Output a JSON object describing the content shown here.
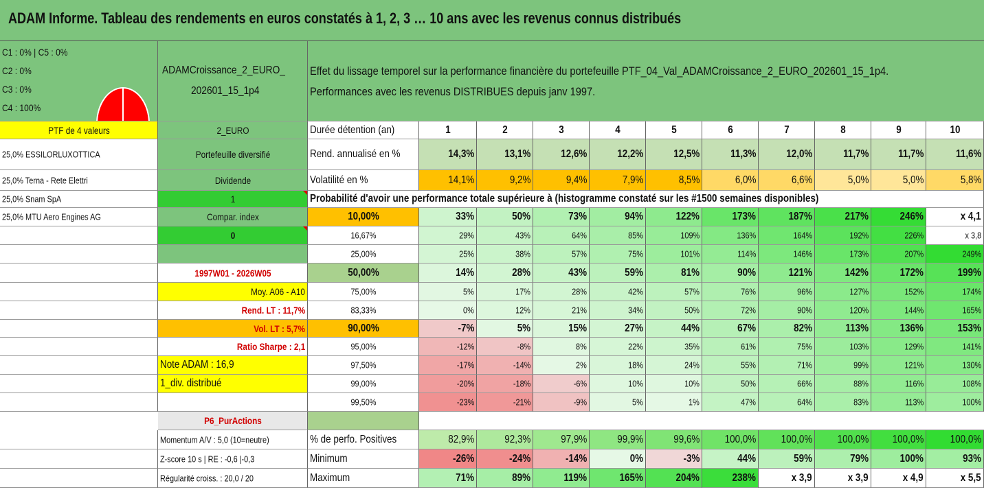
{
  "title": "ADAM Informe. Tableau des rendements en euros constatés à 1, 2, 3 … 10 ans avec les revenus connus distribués",
  "colors": {
    "bg_green": "#7dc47d",
    "header_row": "#a9d18e",
    "yellow": "#ffff00",
    "orange": "#ffc000",
    "bright_green": "#33cc33",
    "pie_red": "#ff0000"
  },
  "classes": [
    "C1 : 0% | C5 : 0%",
    "C2 : 0%",
    "C3 : 0%",
    "C4 : 100%"
  ],
  "portfolio_name_line1": "ADAMCroissance_2_EURO_",
  "portfolio_name_line2": "202601_15_1p4",
  "description_line1": "Effet du lissage temporel sur la performance financière du portefeuille PTF_04_Val_ADAMCroissance_2_EURO_202601_15_1p4.",
  "description_line2": "Performances avec les revenus DISTRIBUES depuis janv 1997.",
  "ptf_label": "PTF de 4 valeurs",
  "currency": "2_EURO",
  "duration_label": "Durée détention (an)",
  "years": [
    "1",
    "2",
    "3",
    "4",
    "5",
    "6",
    "7",
    "8",
    "9",
    "10"
  ],
  "holdings": [
    "25,0% ESSILORLUXOTTICA",
    "25,0% Terna - Rete Elettri",
    "25,0% Snam SpA",
    "25,0% MTU Aero Engines AG"
  ],
  "side": {
    "diversified": "Portefeuille diversifié",
    "dividend": "Dividende",
    "one": "1",
    "compar_index": "Compar. index",
    "zero": "0",
    "period": "1997W01 - 2026W05",
    "moy": "Moy. A06 - A10",
    "rend_lt": "Rend. LT : 11,7%",
    "vol_lt": "Vol. LT : 5,7%",
    "sharpe": "Ratio Sharpe : 2,1",
    "note": "Note ADAM : 16,9",
    "div": "1_div. distribué",
    "p6": "P6_PurActions"
  },
  "rend_label": "Rend. annualisé en %",
  "rend": [
    "14,3%",
    "13,1%",
    "12,6%",
    "12,2%",
    "12,5%",
    "11,3%",
    "12,0%",
    "11,7%",
    "11,7%",
    "11,6%"
  ],
  "vol_label": "Volatilité en %",
  "vol": [
    "14,1%",
    "9,2%",
    "9,4%",
    "7,9%",
    "8,5%",
    "6,0%",
    "6,6%",
    "5,0%",
    "5,0%",
    "5,8%"
  ],
  "proba_label": "Probabilité d'avoir une performance totale supérieure à (histogramme constaté sur les #1500 semaines disponibles)",
  "quantiles": [
    {
      "q": "10,00%",
      "v": [
        "33%",
        "50%",
        "73%",
        "94%",
        "122%",
        "173%",
        "187%",
        "217%",
        "246%",
        "x 4,1"
      ]
    },
    {
      "q": "16,67%",
      "v": [
        "29%",
        "43%",
        "64%",
        "85%",
        "109%",
        "136%",
        "164%",
        "192%",
        "226%",
        "x 3,8"
      ]
    },
    {
      "q": "25,00%",
      "v": [
        "25%",
        "38%",
        "57%",
        "75%",
        "101%",
        "114%",
        "146%",
        "173%",
        "207%",
        "249%"
      ]
    },
    {
      "q": "50,00%",
      "v": [
        "14%",
        "28%",
        "43%",
        "59%",
        "81%",
        "90%",
        "121%",
        "142%",
        "172%",
        "199%"
      ]
    },
    {
      "q": "75,00%",
      "v": [
        "5%",
        "17%",
        "28%",
        "42%",
        "57%",
        "76%",
        "96%",
        "127%",
        "152%",
        "174%"
      ]
    },
    {
      "q": "83,33%",
      "v": [
        "0%",
        "12%",
        "21%",
        "34%",
        "50%",
        "72%",
        "90%",
        "120%",
        "144%",
        "165%"
      ]
    },
    {
      "q": "90,00%",
      "v": [
        "-7%",
        "5%",
        "15%",
        "27%",
        "44%",
        "67%",
        "82%",
        "113%",
        "136%",
        "153%"
      ]
    },
    {
      "q": "95,00%",
      "v": [
        "-12%",
        "-8%",
        "8%",
        "22%",
        "35%",
        "61%",
        "75%",
        "103%",
        "129%",
        "141%"
      ]
    },
    {
      "q": "97,50%",
      "v": [
        "-17%",
        "-14%",
        "2%",
        "18%",
        "24%",
        "55%",
        "71%",
        "99%",
        "121%",
        "130%"
      ]
    },
    {
      "q": "99,00%",
      "v": [
        "-20%",
        "-18%",
        "-6%",
        "10%",
        "10%",
        "50%",
        "66%",
        "88%",
        "116%",
        "108%"
      ]
    },
    {
      "q": "99,50%",
      "v": [
        "-23%",
        "-21%",
        "-9%",
        "5%",
        "1%",
        "47%",
        "64%",
        "83%",
        "113%",
        "100%"
      ]
    }
  ],
  "bottom_left": [
    "Momentum A/V : 5,0 (10=neutre)",
    "Z-score 10 s | RE : -0,6 |-0,3",
    "Régularité croiss. : 20,0 / 20"
  ],
  "pos_label": "% de perfo. Positives",
  "pos": [
    "82,9%",
    "92,3%",
    "97,9%",
    "99,9%",
    "99,6%",
    "100,0%",
    "100,0%",
    "100,0%",
    "100,0%",
    "100,0%"
  ],
  "min_label": "Minimum",
  "min": [
    "-26%",
    "-24%",
    "-14%",
    "0%",
    "-3%",
    "44%",
    "59%",
    "79%",
    "100%",
    "93%"
  ],
  "max_label": "Maximum",
  "max": [
    "71%",
    "89%",
    "119%",
    "165%",
    "204%",
    "238%",
    "x 3,9",
    "x 3,9",
    "x 4,9",
    "x 5,5"
  ]
}
